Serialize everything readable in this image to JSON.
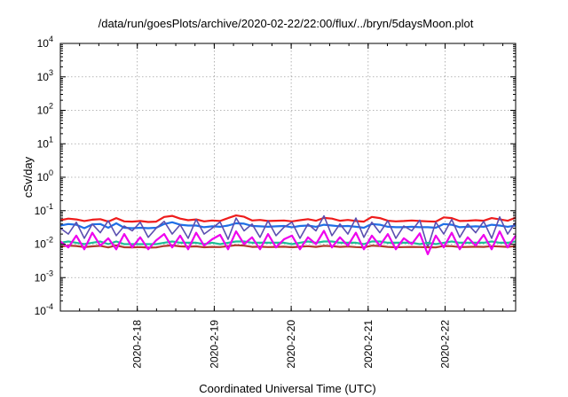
{
  "chart_data": {
    "type": "line",
    "title": "/data/run/goesPlots/archive/2020-02-22/22:00/flux/../bryn/5daysMoon.plot",
    "xlabel": "Coordinated Universal Time (UTC)",
    "ylabel": "cSv/day",
    "yscale": "log",
    "ylim": [
      0.0001,
      10000
    ],
    "xlim": [
      "2020-02-17T00:00",
      "2020-02-22T22:00"
    ],
    "grid": true,
    "legend": "none",
    "x_ticks": [
      "2020-2-18",
      "2020-2-19",
      "2020-2-20",
      "2020-2-21",
      "2020-2-22"
    ],
    "y_ticks": [
      {
        "base": "10",
        "exp": "-4",
        "value": 0.0001
      },
      {
        "base": "10",
        "exp": "-3",
        "value": 0.001
      },
      {
        "base": "10",
        "exp": "-2",
        "value": 0.01
      },
      {
        "base": "10",
        "exp": "-1",
        "value": 0.1
      },
      {
        "base": "10",
        "exp": "0",
        "value": 1
      },
      {
        "base": "10",
        "exp": "1",
        "value": 10
      },
      {
        "base": "10",
        "exp": "2",
        "value": 100
      },
      {
        "base": "10",
        "exp": "3",
        "value": 1000
      },
      {
        "base": "10",
        "exp": "4",
        "value": 10000
      }
    ],
    "series": [
      {
        "color": "#ee1c1c",
        "values": [
          0.052,
          0.058,
          0.055,
          0.049,
          0.054,
          0.056,
          0.047,
          0.06,
          0.048,
          0.047,
          0.049,
          0.046,
          0.047,
          0.065,
          0.07,
          0.058,
          0.052,
          0.055,
          0.048,
          0.051,
          0.049,
          0.06,
          0.072,
          0.066,
          0.051,
          0.053,
          0.049,
          0.05,
          0.051,
          0.048,
          0.052,
          0.056,
          0.05,
          0.061,
          0.058,
          0.05,
          0.053,
          0.049,
          0.047,
          0.065,
          0.06,
          0.05,
          0.048,
          0.049,
          0.051,
          0.049,
          0.048,
          0.047,
          0.063,
          0.06,
          0.049,
          0.05,
          0.052,
          0.05,
          0.06,
          0.055,
          0.05,
          0.062
        ]
      },
      {
        "color": "#1e6ee6",
        "values": [
          0.036,
          0.04,
          0.038,
          0.03,
          0.039,
          0.04,
          0.031,
          0.042,
          0.031,
          0.03,
          0.031,
          0.03,
          0.031,
          0.04,
          0.045,
          0.038,
          0.036,
          0.036,
          0.032,
          0.034,
          0.033,
          0.036,
          0.042,
          0.041,
          0.035,
          0.034,
          0.033,
          0.034,
          0.035,
          0.032,
          0.035,
          0.036,
          0.033,
          0.038,
          0.036,
          0.034,
          0.035,
          0.033,
          0.031,
          0.04,
          0.038,
          0.033,
          0.032,
          0.032,
          0.033,
          0.032,
          0.032,
          0.031,
          0.04,
          0.038,
          0.032,
          0.033,
          0.034,
          0.033,
          0.038,
          0.036,
          0.033,
          0.036
        ]
      },
      {
        "color": "#5b4fb0",
        "values": [
          0.03,
          0.02,
          0.045,
          0.015,
          0.04,
          0.022,
          0.05,
          0.018,
          0.035,
          0.025,
          0.045,
          0.016,
          0.03,
          0.048,
          0.02,
          0.038,
          0.015,
          0.055,
          0.02,
          0.03,
          0.046,
          0.014,
          0.06,
          0.025,
          0.04,
          0.016,
          0.05,
          0.018,
          0.032,
          0.045,
          0.015,
          0.04,
          0.025,
          0.07,
          0.018,
          0.04,
          0.02,
          0.06,
          0.016,
          0.045,
          0.022,
          0.05,
          0.015,
          0.035,
          0.025,
          0.052,
          0.008,
          0.045,
          0.02,
          0.055,
          0.016,
          0.04,
          0.022,
          0.048,
          0.015,
          0.065,
          0.02,
          0.045
        ]
      },
      {
        "color": "#1fbf96",
        "values": [
          0.011,
          0.012,
          0.011,
          0.01,
          0.011,
          0.012,
          0.01,
          0.012,
          0.01,
          0.01,
          0.01,
          0.01,
          0.01,
          0.011,
          0.012,
          0.011,
          0.011,
          0.011,
          0.01,
          0.011,
          0.01,
          0.011,
          0.012,
          0.012,
          0.011,
          0.011,
          0.011,
          0.011,
          0.011,
          0.01,
          0.011,
          0.012,
          0.011,
          0.012,
          0.012,
          0.011,
          0.011,
          0.011,
          0.01,
          0.012,
          0.012,
          0.011,
          0.011,
          0.011,
          0.011,
          0.01,
          0.011,
          0.01,
          0.011,
          0.012,
          0.011,
          0.011,
          0.011,
          0.011,
          0.012,
          0.011,
          0.011,
          0.012
        ]
      },
      {
        "color": "#b03a2e",
        "values": [
          0.0085,
          0.009,
          0.0088,
          0.0082,
          0.0086,
          0.0089,
          0.008,
          0.0092,
          0.0081,
          0.008,
          0.0082,
          0.0079,
          0.008,
          0.0088,
          0.0092,
          0.0086,
          0.0084,
          0.0086,
          0.0081,
          0.0083,
          0.0082,
          0.0087,
          0.0093,
          0.009,
          0.0083,
          0.0084,
          0.0082,
          0.0083,
          0.0084,
          0.0081,
          0.0084,
          0.0087,
          0.0083,
          0.0089,
          0.0087,
          0.0083,
          0.0085,
          0.0082,
          0.008,
          0.009,
          0.0088,
          0.0083,
          0.0081,
          0.0082,
          0.0083,
          0.0082,
          0.0081,
          0.008,
          0.0088,
          0.0087,
          0.0082,
          0.0083,
          0.0084,
          0.0083,
          0.0087,
          0.0085,
          0.0083,
          0.0088
        ]
      },
      {
        "color": "#ee00ee",
        "values": [
          0.012,
          0.008,
          0.018,
          0.007,
          0.022,
          0.009,
          0.015,
          0.007,
          0.02,
          0.008,
          0.016,
          0.007,
          0.013,
          0.02,
          0.008,
          0.018,
          0.007,
          0.022,
          0.009,
          0.014,
          0.019,
          0.007,
          0.024,
          0.01,
          0.016,
          0.007,
          0.02,
          0.008,
          0.014,
          0.018,
          0.007,
          0.016,
          0.01,
          0.025,
          0.008,
          0.016,
          0.009,
          0.022,
          0.007,
          0.018,
          0.009,
          0.02,
          0.007,
          0.015,
          0.01,
          0.021,
          0.005,
          0.018,
          0.008,
          0.022,
          0.007,
          0.016,
          0.009,
          0.019,
          0.007,
          0.024,
          0.008,
          0.018
        ]
      }
    ]
  }
}
